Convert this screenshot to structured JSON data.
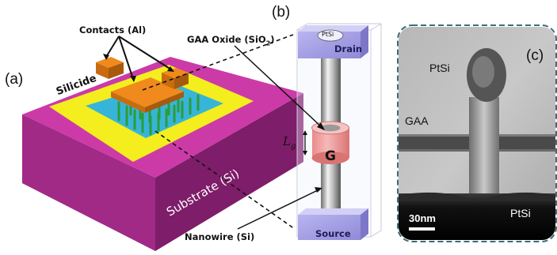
{
  "panel_a": {
    "label": "(a)",
    "contacts_label": "Contacts (Al)",
    "silicide_label": "Silicide",
    "substrate_label": "Substrate (Si)",
    "colors": {
      "substrate_top": "#cc3aa8",
      "substrate_front": "#a02a86",
      "substrate_side": "#7e1d6a",
      "silicide": "#f4ee1e",
      "oxide": "#37b5d8",
      "pad": "#f08a1c",
      "wire": "#2d9b3a"
    }
  },
  "panel_b": {
    "label": "(b)",
    "top_cap_label": "PtSi",
    "drain_label": "Drain",
    "source_label": "Source",
    "gate_label": "G",
    "lg_label": "L",
    "lg_sub": "g",
    "oxide_label": "GAA Oxide (SiO",
    "oxide_sub": "2",
    "oxide_close": ")",
    "nanowire_label": "Nanowire (Si)"
  },
  "panel_c": {
    "label": "(c)",
    "ptsi_top": "PtSi",
    "gaa": "GAA",
    "ptsi_bottom": "PtSi",
    "scale": "30nm"
  }
}
